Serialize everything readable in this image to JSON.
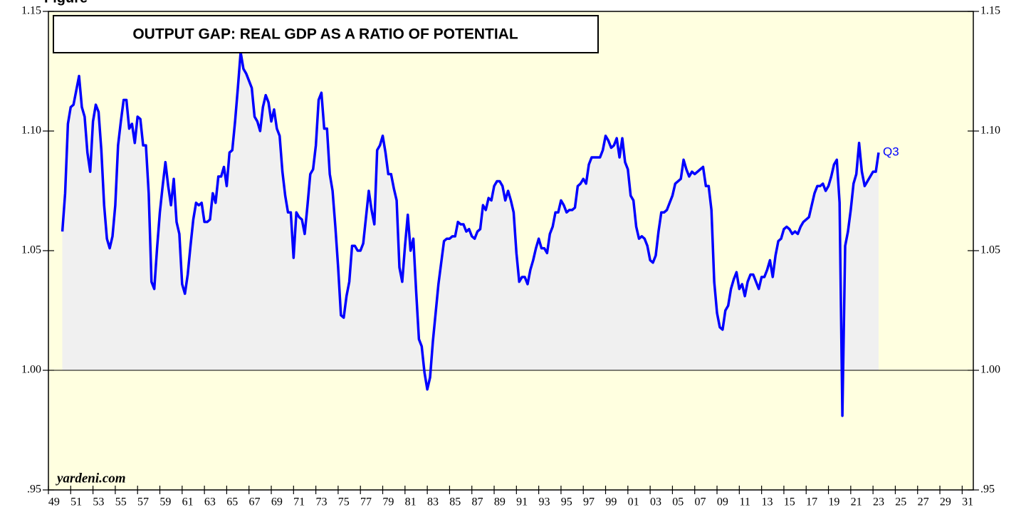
{
  "chart_data": {
    "type": "line",
    "figure_label": "Figure",
    "title": "OUTPUT GAP: REAL GDP AS A RATIO OF POTENTIAL",
    "source": "yardeni.com",
    "annotations": [
      {
        "text": "Q3"
      }
    ],
    "background": "#ffffe0",
    "area_color": "#f0f0f0",
    "reference_line": 1,
    "xlim": [
      1949,
      2032
    ],
    "xticks": [
      {
        "value": 1949,
        "label": "49"
      },
      {
        "value": 1951,
        "label": "51"
      },
      {
        "value": 1953,
        "label": "53"
      },
      {
        "value": 1955,
        "label": "55"
      },
      {
        "value": 1957,
        "label": "57"
      },
      {
        "value": 1959,
        "label": "59"
      },
      {
        "value": 1961,
        "label": "61"
      },
      {
        "value": 1963,
        "label": "63"
      },
      {
        "value": 1965,
        "label": "65"
      },
      {
        "value": 1967,
        "label": "67"
      },
      {
        "value": 1969,
        "label": "69"
      },
      {
        "value": 1971,
        "label": "71"
      },
      {
        "value": 1973,
        "label": "73"
      },
      {
        "value": 1975,
        "label": "75"
      },
      {
        "value": 1977,
        "label": "77"
      },
      {
        "value": 1979,
        "label": "79"
      },
      {
        "value": 1981,
        "label": "81"
      },
      {
        "value": 1983,
        "label": "83"
      },
      {
        "value": 1985,
        "label": "85"
      },
      {
        "value": 1987,
        "label": "87"
      },
      {
        "value": 1989,
        "label": "89"
      },
      {
        "value": 1991,
        "label": "91"
      },
      {
        "value": 1993,
        "label": "93"
      },
      {
        "value": 1995,
        "label": "95"
      },
      {
        "value": 1997,
        "label": "97"
      },
      {
        "value": 1999,
        "label": "99"
      },
      {
        "value": 2001,
        "label": "01"
      },
      {
        "value": 2003,
        "label": "03"
      },
      {
        "value": 2005,
        "label": "05"
      },
      {
        "value": 2007,
        "label": "07"
      },
      {
        "value": 2009,
        "label": "09"
      },
      {
        "value": 2011,
        "label": "11"
      },
      {
        "value": 2013,
        "label": "13"
      },
      {
        "value": 2015,
        "label": "15"
      },
      {
        "value": 2017,
        "label": "17"
      },
      {
        "value": 2019,
        "label": "19"
      },
      {
        "value": 2021,
        "label": "21"
      },
      {
        "value": 2023,
        "label": "23"
      },
      {
        "value": 2025,
        "label": "25"
      },
      {
        "value": 2027,
        "label": "27"
      },
      {
        "value": 2029,
        "label": "29"
      },
      {
        "value": 2031,
        "label": "31"
      }
    ],
    "ylim": [
      0.95,
      1.15
    ],
    "yticks": [
      {
        "value": 0.95,
        "label": ".95"
      },
      {
        "value": 1,
        "label": "1.00"
      },
      1.05,
      {
        "value": 1.1,
        "label": "1.10"
      },
      1.15
    ],
    "x": [
      1950.25,
      1950.5,
      1950.75,
      1951,
      1951.25,
      1951.5,
      1951.75,
      1952,
      1952.25,
      1952.5,
      1952.75,
      1953,
      1953.25,
      1953.5,
      1953.75,
      1954,
      1954.25,
      1954.5,
      1954.75,
      1955,
      1955.25,
      1955.5,
      1955.75,
      1956,
      1956.25,
      1956.5,
      1956.75,
      1957,
      1957.25,
      1957.5,
      1957.75,
      1958,
      1958.25,
      1958.5,
      1958.75,
      1959,
      1959.25,
      1959.5,
      1959.75,
      1960,
      1960.25,
      1960.5,
      1960.75,
      1961,
      1961.25,
      1961.5,
      1961.75,
      1962,
      1962.25,
      1962.5,
      1962.75,
      1963,
      1963.25,
      1963.5,
      1963.75,
      1964,
      1964.25,
      1964.5,
      1964.75,
      1965,
      1965.25,
      1965.5,
      1965.75,
      1966,
      1966.25,
      1966.5,
      1966.75,
      1967,
      1967.25,
      1967.5,
      1967.75,
      1968,
      1968.25,
      1968.5,
      1968.75,
      1969,
      1969.25,
      1969.5,
      1969.75,
      1970,
      1970.25,
      1970.5,
      1970.75,
      1971,
      1971.25,
      1971.5,
      1971.75,
      1972,
      1972.25,
      1972.5,
      1972.75,
      1973,
      1973.25,
      1973.5,
      1973.75,
      1974,
      1974.25,
      1974.5,
      1974.75,
      1975,
      1975.25,
      1975.5,
      1975.75,
      1976,
      1976.25,
      1976.5,
      1976.75,
      1977,
      1977.25,
      1977.5,
      1977.75,
      1978,
      1978.25,
      1978.5,
      1978.75,
      1979,
      1979.25,
      1979.5,
      1979.75,
      1980,
      1980.25,
      1980.5,
      1980.75,
      1981,
      1981.25,
      1981.5,
      1981.75,
      1982,
      1982.25,
      1982.5,
      1982.75,
      1983,
      1983.25,
      1983.5,
      1983.75,
      1984,
      1984.25,
      1984.5,
      1984.75,
      1985,
      1985.25,
      1985.5,
      1985.75,
      1986,
      1986.25,
      1986.5,
      1986.75,
      1987,
      1987.25,
      1987.5,
      1987.75,
      1988,
      1988.25,
      1988.5,
      1988.75,
      1989,
      1989.25,
      1989.5,
      1989.75,
      1990,
      1990.25,
      1990.5,
      1990.75,
      1991,
      1991.25,
      1991.5,
      1991.75,
      1992,
      1992.25,
      1992.5,
      1992.75,
      1993,
      1993.25,
      1993.5,
      1993.75,
      1994,
      1994.25,
      1994.5,
      1994.75,
      1995,
      1995.25,
      1995.5,
      1995.75,
      1996,
      1996.25,
      1996.5,
      1996.75,
      1997,
      1997.25,
      1997.5,
      1997.75,
      1998,
      1998.25,
      1998.5,
      1998.75,
      1999,
      1999.25,
      1999.5,
      1999.75,
      2000,
      2000.25,
      2000.5,
      2000.75,
      2001,
      2001.25,
      2001.5,
      2001.75,
      2002,
      2002.25,
      2002.5,
      2002.75,
      2003,
      2003.25,
      2003.5,
      2003.75,
      2004,
      2004.25,
      2004.5,
      2004.75,
      2005,
      2005.25,
      2005.5,
      2005.75,
      2006,
      2006.25,
      2006.5,
      2006.75,
      2007,
      2007.25,
      2007.5,
      2007.75,
      2008,
      2008.25,
      2008.5,
      2008.75,
      2009,
      2009.25,
      2009.5,
      2009.75,
      2010,
      2010.25,
      2010.5,
      2010.75,
      2011,
      2011.25,
      2011.5,
      2011.75,
      2012,
      2012.25,
      2012.5,
      2012.75,
      2013,
      2013.25,
      2013.5,
      2013.75,
      2014,
      2014.25,
      2014.5,
      2014.75,
      2015,
      2015.25,
      2015.5,
      2015.75,
      2016,
      2016.25,
      2016.5,
      2016.75,
      2017,
      2017.25,
      2017.5,
      2017.75,
      2018,
      2018.25,
      2018.5,
      2018.75,
      2019,
      2019.25,
      2019.5,
      2019.75,
      2020,
      2020.25,
      2020.5,
      2020.75,
      2021,
      2021.25,
      2021.5,
      2021.75,
      2022,
      2022.25,
      2022.5,
      2022.75,
      2023,
      2023.25,
      2023.5
    ],
    "series": [
      {
        "color": "#0000ff",
        "values": [
          1.058,
          1.074,
          1.103,
          1.11,
          1.111,
          1.117,
          1.123,
          1.11,
          1.106,
          1.091,
          1.083,
          1.104,
          1.111,
          1.108,
          1.092,
          1.069,
          1.055,
          1.051,
          1.056,
          1.069,
          1.094,
          1.104,
          1.113,
          1.113,
          1.101,
          1.103,
          1.095,
          1.106,
          1.105,
          1.094,
          1.094,
          1.074,
          1.037,
          1.034,
          1.051,
          1.066,
          1.077,
          1.087,
          1.077,
          1.069,
          1.08,
          1.062,
          1.057,
          1.036,
          1.032,
          1.04,
          1.052,
          1.063,
          1.07,
          1.069,
          1.07,
          1.062,
          1.062,
          1.063,
          1.074,
          1.07,
          1.081,
          1.081,
          1.085,
          1.077,
          1.091,
          1.092,
          1.104,
          1.118,
          1.133,
          1.126,
          1.124,
          1.121,
          1.118,
          1.106,
          1.104,
          1.1,
          1.11,
          1.115,
          1.112,
          1.104,
          1.109,
          1.101,
          1.098,
          1.083,
          1.073,
          1.066,
          1.066,
          1.047,
          1.066,
          1.064,
          1.063,
          1.057,
          1.069,
          1.082,
          1.084,
          1.094,
          1.113,
          1.116,
          1.101,
          1.101,
          1.082,
          1.075,
          1.06,
          1.043,
          1.023,
          1.022,
          1.031,
          1.037,
          1.052,
          1.052,
          1.05,
          1.05,
          1.053,
          1.064,
          1.075,
          1.067,
          1.061,
          1.092,
          1.094,
          1.098,
          1.091,
          1.082,
          1.082,
          1.076,
          1.071,
          1.043,
          1.037,
          1.052,
          1.065,
          1.05,
          1.055,
          1.033,
          1.013,
          1.01,
          0.999,
          0.992,
          0.997,
          1.012,
          1.024,
          1.036,
          1.045,
          1.054,
          1.055,
          1.055,
          1.056,
          1.056,
          1.062,
          1.061,
          1.061,
          1.058,
          1.059,
          1.056,
          1.055,
          1.058,
          1.059,
          1.069,
          1.067,
          1.072,
          1.071,
          1.077,
          1.079,
          1.079,
          1.077,
          1.071,
          1.075,
          1.071,
          1.066,
          1.049,
          1.037,
          1.039,
          1.039,
          1.036,
          1.042,
          1.046,
          1.051,
          1.055,
          1.051,
          1.051,
          1.049,
          1.057,
          1.06,
          1.066,
          1.066,
          1.071,
          1.069,
          1.066,
          1.067,
          1.067,
          1.068,
          1.077,
          1.078,
          1.08,
          1.078,
          1.086,
          1.089,
          1.089,
          1.089,
          1.089,
          1.092,
          1.098,
          1.096,
          1.093,
          1.094,
          1.097,
          1.089,
          1.097,
          1.087,
          1.084,
          1.073,
          1.071,
          1.06,
          1.055,
          1.056,
          1.055,
          1.052,
          1.046,
          1.045,
          1.048,
          1.058,
          1.066,
          1.066,
          1.067,
          1.07,
          1.073,
          1.078,
          1.079,
          1.08,
          1.088,
          1.084,
          1.081,
          1.083,
          1.082,
          1.083,
          1.084,
          1.085,
          1.077,
          1.077,
          1.067,
          1.037,
          1.024,
          1.018,
          1.017,
          1.025,
          1.027,
          1.034,
          1.038,
          1.041,
          1.034,
          1.036,
          1.031,
          1.037,
          1.04,
          1.04,
          1.037,
          1.034,
          1.039,
          1.039,
          1.042,
          1.046,
          1.039,
          1.048,
          1.054,
          1.055,
          1.059,
          1.06,
          1.059,
          1.057,
          1.058,
          1.057,
          1.06,
          1.062,
          1.063,
          1.064,
          1.069,
          1.074,
          1.077,
          1.077,
          1.078,
          1.075,
          1.077,
          1.081,
          1.086,
          1.088,
          1.07,
          0.981,
          1.052,
          1.058,
          1.067,
          1.078,
          1.082,
          1.095,
          1.083,
          1.077,
          1.079,
          1.081,
          1.083,
          1.083,
          1.091
        ]
      }
    ]
  }
}
